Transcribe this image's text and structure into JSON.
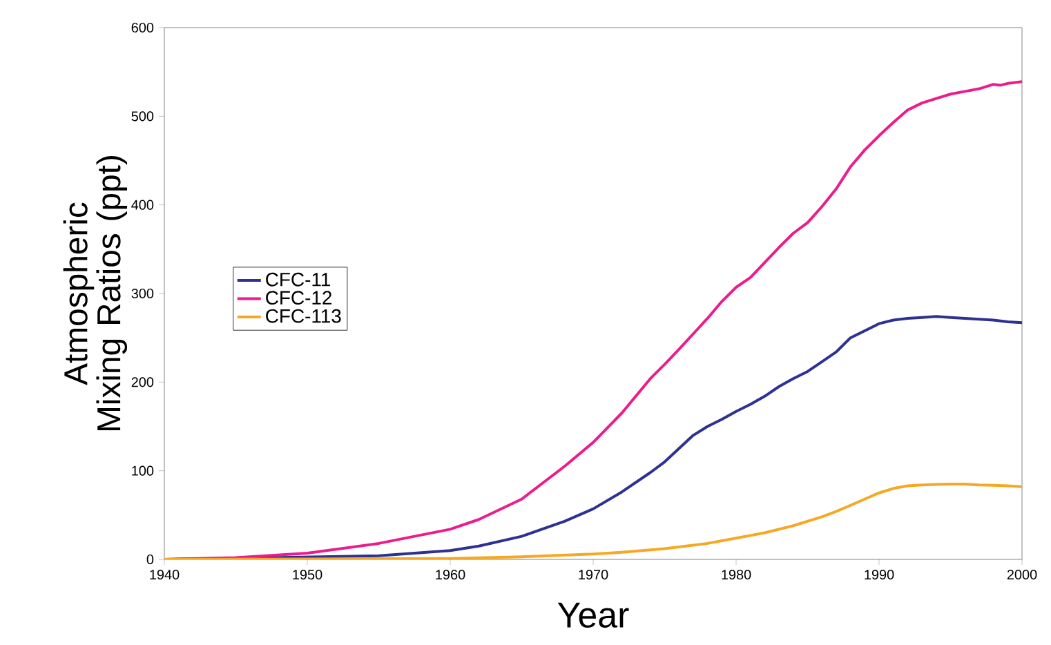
{
  "chart_data": {
    "type": "line",
    "xlabel": "Year",
    "ylabel": "Atmospheric Mixing Ratios (ppt)",
    "xlim": [
      1940,
      2000
    ],
    "ylim": [
      0,
      600
    ],
    "xticks": [
      1940,
      1950,
      1960,
      1970,
      1980,
      1990,
      2000
    ],
    "yticks": [
      0,
      100,
      200,
      300,
      400,
      500,
      600
    ],
    "legend": "left",
    "grid": false,
    "marker": "none",
    "line_style": "solid",
    "series": [
      {
        "name": "CFC-11",
        "color": "#2e3192",
        "x": [
          1940,
          1950,
          1955,
          1960,
          1962,
          1965,
          1968,
          1970,
          1972,
          1974,
          1975,
          1976,
          1977,
          1978,
          1979,
          1980,
          1981,
          1982,
          1983,
          1984,
          1985,
          1986,
          1987,
          1988,
          1989,
          1990,
          1991,
          1992,
          1993,
          1994,
          1995,
          1996,
          1997,
          1998,
          1999,
          2000
        ],
        "values": [
          0,
          null,
          4,
          10,
          15,
          26,
          43,
          57,
          76,
          98,
          110,
          125,
          140,
          150,
          158,
          167,
          175,
          184,
          195,
          204,
          212,
          223,
          234,
          250,
          258,
          266,
          270,
          272,
          273,
          274,
          273,
          272,
          271,
          270,
          268,
          267
        ]
      },
      {
        "name": "CFC-12",
        "color": "#ec1c8c",
        "x": [
          1940,
          1945,
          1950,
          1955,
          1960,
          1962,
          1965,
          1968,
          1970,
          1972,
          1974,
          1975,
          1976,
          1978,
          1979,
          1980,
          1981,
          1982,
          1983,
          1984,
          1985,
          1986,
          1987,
          1988,
          1989,
          1990,
          1991,
          1992,
          1993,
          1994,
          1995,
          1996,
          1997,
          1998,
          1998.5,
          1999,
          2000
        ],
        "values": [
          0,
          2,
          7,
          18,
          34,
          45,
          68,
          105,
          132,
          165,
          204,
          220,
          237,
          272,
          291,
          307,
          318,
          335,
          352,
          368,
          380,
          398,
          418,
          443,
          462,
          478,
          493,
          507,
          515,
          520,
          525,
          528,
          531,
          536,
          535,
          537,
          539
        ]
      },
      {
        "name": "CFC-113",
        "color": "#f7a823",
        "x": [
          1940,
          1960,
          1965,
          1970,
          1972,
          1975,
          1978,
          1980,
          1982,
          1984,
          1986,
          1987,
          1988,
          1989,
          1990,
          1991,
          1992,
          1993,
          1994,
          1995,
          1996,
          1997,
          1998,
          1999,
          2000
        ],
        "values": [
          0,
          1,
          3,
          6,
          8,
          12,
          18,
          24,
          30,
          38,
          48,
          54,
          61,
          68,
          75,
          80,
          83,
          84,
          84.5,
          85,
          85,
          84,
          83.5,
          83,
          82
        ]
      }
    ]
  }
}
